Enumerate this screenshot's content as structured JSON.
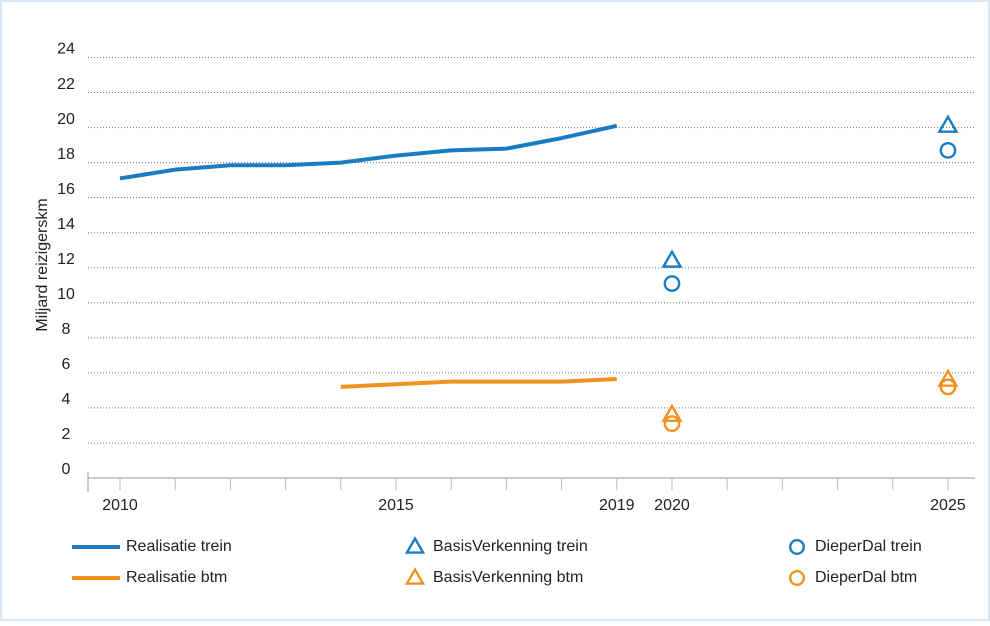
{
  "chart_data": {
    "type": "line",
    "ylabel": "Miljard reizigerskm",
    "xlim": [
      2009.42,
      2025.49
    ],
    "ylim": [
      0,
      24.2
    ],
    "xticks": [
      2010,
      2015,
      2019,
      2020,
      2025
    ],
    "xminorticks": [
      2010,
      2011,
      2012,
      2013,
      2014,
      2015,
      2016,
      2017,
      2018,
      2019,
      2020,
      2021,
      2022,
      2023,
      2024,
      2025
    ],
    "yticks": [
      0,
      2,
      4,
      6,
      8,
      10,
      12,
      14,
      16,
      18,
      20,
      22,
      24
    ],
    "grid": true,
    "series": [
      {
        "name": "Realisatie trein",
        "color": "#1a7dc4",
        "marker": "line",
        "x": [
          2010,
          2011,
          2012,
          2013,
          2014,
          2015,
          2016,
          2017,
          2018,
          2019
        ],
        "values": [
          17.1,
          17.6,
          17.85,
          17.85,
          18.0,
          18.4,
          18.7,
          18.8,
          19.4,
          20.1
        ]
      },
      {
        "name": "Realisatie btm",
        "color": "#f0931e",
        "marker": "line",
        "x": [
          2014,
          2015,
          2016,
          2017,
          2018,
          2019
        ],
        "values": [
          5.2,
          5.35,
          5.5,
          5.5,
          5.5,
          5.65
        ]
      },
      {
        "name": "BasisVerkenning trein",
        "color": "#1a7dc4",
        "marker": "triangle",
        "x": [
          2020,
          2025
        ],
        "values": [
          12.4,
          20.1
        ]
      },
      {
        "name": "BasisVerkenning btm",
        "color": "#f0931e",
        "marker": "triangle",
        "x": [
          2020,
          2025
        ],
        "values": [
          3.6,
          5.6
        ]
      },
      {
        "name": "DieperDal trein",
        "color": "#1a7dc4",
        "marker": "circle",
        "x": [
          2020,
          2025
        ],
        "values": [
          11.1,
          18.7
        ]
      },
      {
        "name": "DieperDal btm",
        "color": "#f0931e",
        "marker": "circle",
        "x": [
          2020,
          2025
        ],
        "values": [
          3.1,
          5.2
        ]
      }
    ]
  }
}
